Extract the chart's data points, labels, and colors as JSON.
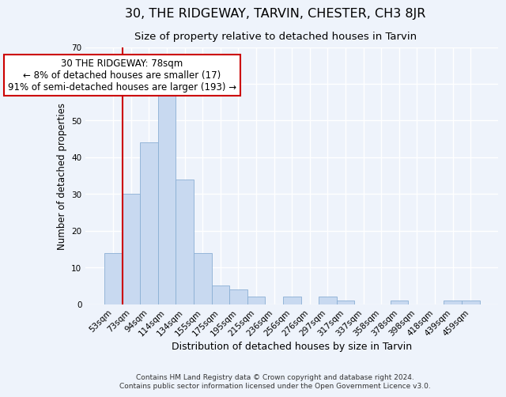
{
  "title": "30, THE RIDGEWAY, TARVIN, CHESTER, CH3 8JR",
  "subtitle": "Size of property relative to detached houses in Tarvin",
  "xlabel": "Distribution of detached houses by size in Tarvin",
  "ylabel": "Number of detached properties",
  "bar_labels": [
    "53sqm",
    "73sqm",
    "94sqm",
    "114sqm",
    "134sqm",
    "155sqm",
    "175sqm",
    "195sqm",
    "215sqm",
    "236sqm",
    "256sqm",
    "276sqm",
    "297sqm",
    "317sqm",
    "337sqm",
    "358sqm",
    "378sqm",
    "398sqm",
    "418sqm",
    "439sqm",
    "459sqm"
  ],
  "bar_values": [
    14,
    30,
    44,
    57,
    34,
    14,
    5,
    4,
    2,
    0,
    2,
    0,
    2,
    1,
    0,
    0,
    1,
    0,
    0,
    1,
    1
  ],
  "bar_color": "#c8d9f0",
  "bar_edge_color": "#8aafd4",
  "vline_color": "#cc0000",
  "annotation_line1": "30 THE RIDGEWAY: 78sqm",
  "annotation_line2": "← 8% of detached houses are smaller (17)",
  "annotation_line3": "91% of semi-detached houses are larger (193) →",
  "annotation_box_color": "#ffffff",
  "annotation_box_edge_color": "#cc0000",
  "ylim": [
    0,
    70
  ],
  "yticks": [
    0,
    10,
    20,
    30,
    40,
    50,
    60,
    70
  ],
  "footer_line1": "Contains HM Land Registry data © Crown copyright and database right 2024.",
  "footer_line2": "Contains public sector information licensed under the Open Government Licence v3.0.",
  "background_color": "#eef3fb",
  "grid_color": "#ffffff",
  "title_fontsize": 11.5,
  "subtitle_fontsize": 9.5,
  "xlabel_fontsize": 9,
  "ylabel_fontsize": 8.5,
  "tick_fontsize": 7.5,
  "footer_fontsize": 6.5,
  "annotation_fontsize": 8.5
}
